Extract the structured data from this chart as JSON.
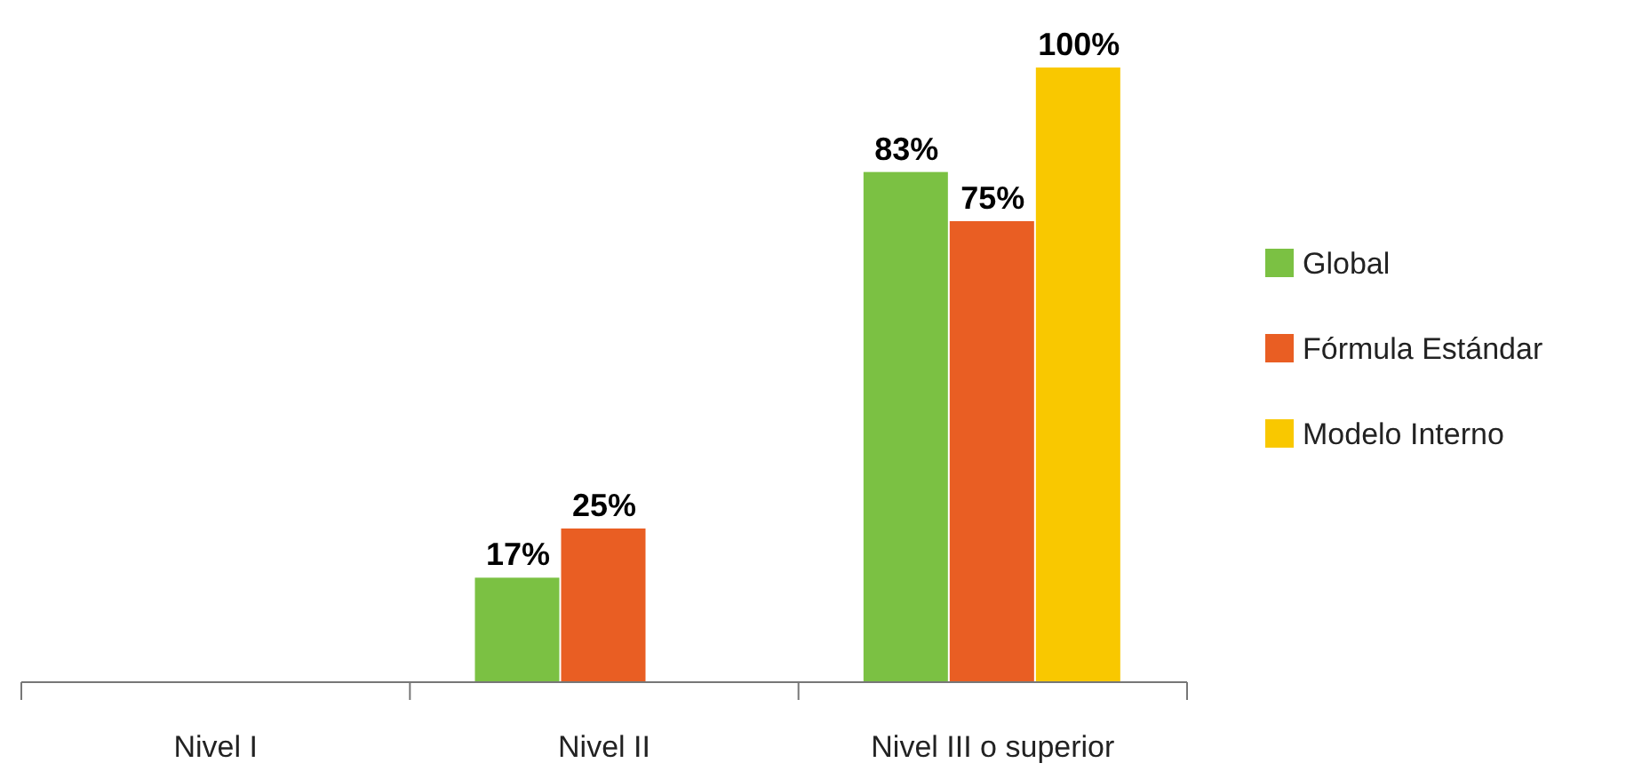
{
  "chart_data": {
    "type": "bar",
    "categories": [
      "Nivel I",
      "Nivel II",
      "Nivel III o superior"
    ],
    "series": [
      {
        "name": "Global",
        "color": "#7bc143",
        "values": [
          null,
          17,
          83
        ],
        "value_labels": [
          null,
          "17%",
          "83%"
        ]
      },
      {
        "name": "Fórmula Estándar",
        "color": "#e95e23",
        "values": [
          null,
          25,
          75
        ],
        "value_labels": [
          null,
          "25%",
          "75%"
        ]
      },
      {
        "name": "Modelo Interno",
        "color": "#f9c800",
        "values": [
          null,
          null,
          100
        ],
        "value_labels": [
          null,
          null,
          "100%"
        ]
      }
    ],
    "legend": "right"
  }
}
